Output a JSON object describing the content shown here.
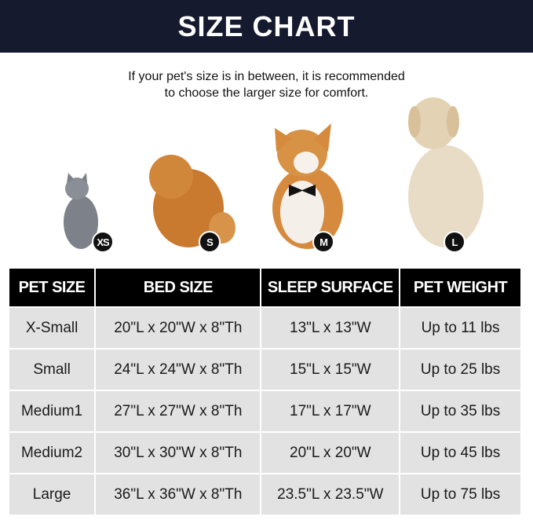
{
  "title": "SIZE CHART",
  "note_lines": [
    "If your pet's size is in between, it is recommended",
    "to choose the larger size for comfort."
  ],
  "pets": [
    {
      "animal": "gray cat",
      "badge": "XS"
    },
    {
      "animal": "pomeranian",
      "badge": "S"
    },
    {
      "animal": "corgi",
      "badge": "M"
    },
    {
      "animal": "golden retriever",
      "badge": "L"
    }
  ],
  "table": {
    "headers": [
      "PET SIZE",
      "BED SIZE",
      "SLEEP SURFACE",
      "PET WEIGHT"
    ],
    "rows": [
      [
        "X-Small",
        "20\"L x 20\"W x 8\"Th",
        "13\"L x 13\"W",
        "Up to 11 lbs"
      ],
      [
        "Small",
        "24\"L x 24\"W x 8\"Th",
        "15\"L x 15\"W",
        "Up to 25 lbs"
      ],
      [
        "Medium1",
        "27\"L x 27\"W x 8\"Th",
        "17\"L x 17\"W",
        "Up to 35 lbs"
      ],
      [
        "Medium2",
        "30\"L x 30\"W x 8\"Th",
        "20\"L x 20\"W",
        "Up to 45 lbs"
      ],
      [
        "Large",
        "36\"L x 36\"W x 8\"Th",
        "23.5\"L x 23.5\"W",
        "Up to 75 lbs"
      ]
    ]
  },
  "colors": {
    "banner": "#151a2e",
    "header_row": "#000000",
    "cell": "#e2e2e2"
  }
}
